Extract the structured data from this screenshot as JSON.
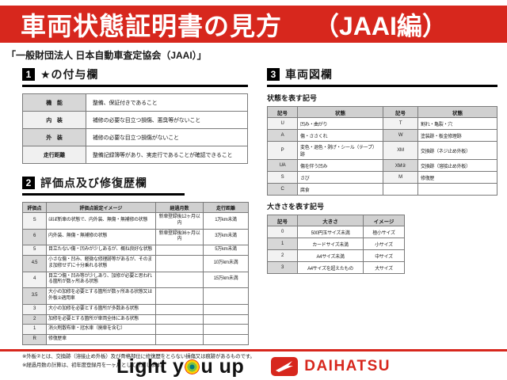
{
  "colors": {
    "accent_red": "#d7271d",
    "table_header_gray": "#d0d0d0"
  },
  "banner": {
    "title": "車両状態証明書の見方",
    "edition": "（JAAI編）"
  },
  "subtitle": "「一般財団法人 日本自動車査定協会（JAAI）」",
  "section1": {
    "number": "1",
    "title": "★の付与欄",
    "rows": [
      [
        "機　能",
        "整備、保証付きであること"
      ],
      [
        "内　装",
        "補修の必要な目立つ損傷、悪臭等がないこと"
      ],
      [
        "外　装",
        "補修の必要な目立つ損傷がないこと"
      ],
      [
        "走行距離",
        "整備記録簿等があり、実走行であることが確認できること"
      ]
    ]
  },
  "section2": {
    "number": "2",
    "title": "評価点及び修復歴欄",
    "headers": [
      "評価点",
      "評価点設定イメージ",
      "経過月数",
      "走行距離"
    ],
    "rows": [
      [
        "S",
        "ほぼ新車の状態で、内外装、無傷・無補修の状態",
        "新車登録後12ヶ月以内",
        "1万km未満"
      ],
      [
        "6",
        "内外装、無傷・無補修の状態",
        "新車登録後36ヶ月以内",
        "3万km未満"
      ],
      [
        "5",
        "目立たない傷・凹みが少しあるが、概ね良好な状態",
        "",
        "5万km未満"
      ],
      [
        "4.5",
        "小さな傷・凹み、軽微な修理跡等があるが、そのまま加修せずに十分乗れる状態",
        "",
        "10万km未満"
      ],
      [
        "4",
        "目立つ傷・凹み等が少しあり、加修が必要と思われる箇所が数ヶ所ある状態",
        "",
        "15万km未満"
      ],
      [
        "3.5",
        "大小の加修を必要とする箇所が数ヶ所ある状態又は外板②適用車",
        "",
        ""
      ],
      [
        "3",
        "大小の加修を必要とする箇所が多数ある状態",
        "",
        ""
      ],
      [
        "2",
        "加修を必要とする箇所が車両全体にある状態",
        "",
        ""
      ],
      [
        "1",
        "消火剤散布車・冠水車（廃車を含む）",
        "",
        ""
      ],
      [
        "R",
        "修復歴車",
        "",
        ""
      ]
    ],
    "notes": [
      "※外板②とは、交換跡（溶接止め外板）及び骨格部位に修復歴をとらない損傷又は痕跡があるものです。",
      "※経過月数の計算は、初年度登録月を一ヶ月として計算します。"
    ]
  },
  "section3": {
    "number": "3",
    "title": "車両図欄",
    "state_label": "状態を表す記号",
    "state_headers": [
      "記号",
      "状態",
      "記号",
      "状態"
    ],
    "state_rows": [
      [
        "U",
        "凹み・曲がり",
        "T",
        "割れ・亀裂・穴"
      ],
      [
        "A",
        "傷・ささくれ",
        "W",
        "塗装跡・板金修理跡"
      ],
      [
        "P",
        "変色・退色・剥げ・シール（テープ）跡",
        "XM",
        "交換跡（ネジ止め外板）"
      ],
      [
        "UA",
        "傷を伴う凹み",
        "XM②",
        "交換跡（溶接止め外板）"
      ],
      [
        "S",
        "さび",
        "M",
        "修復歴"
      ],
      [
        "C",
        "腐食",
        "",
        ""
      ]
    ],
    "size_label": "大きさを表す記号",
    "size_headers": [
      "記号",
      "大きさ",
      "イメージ"
    ],
    "size_rows": [
      [
        "0",
        "500円玉サイズ未満",
        "極小サイズ"
      ],
      [
        "1",
        "カードサイズ未満",
        "小サイズ"
      ],
      [
        "2",
        "A4サイズ未満",
        "中サイズ"
      ],
      [
        "3",
        "A4サイズを超えたもの",
        "大サイズ"
      ]
    ]
  },
  "footer": {
    "slogan_before": "Light y",
    "slogan_after": "u up",
    "target_icon": "colorful-target-circle",
    "brand": "DAIHATSU"
  }
}
